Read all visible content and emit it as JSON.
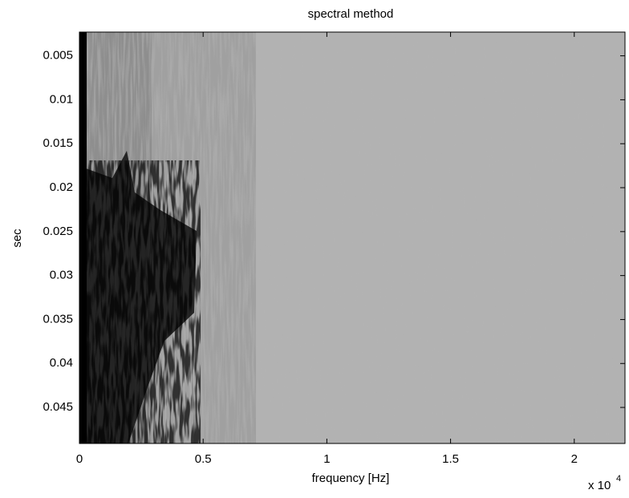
{
  "chart_data": {
    "type": "spectrogram",
    "title": "spectral method",
    "x_label": "frequency [Hz]",
    "y_label": "sec",
    "x_scale_label": {
      "base": "x 10",
      "exponent": "4"
    },
    "xlim": [
      0,
      2.205
    ],
    "xticks": [
      0,
      0.5,
      1,
      1.5,
      2
    ],
    "ylim": [
      0.0023,
      0.0491
    ],
    "yticks": [
      0.005,
      0.01,
      0.015,
      0.02,
      0.025,
      0.03,
      0.035,
      0.04,
      0.045
    ],
    "y_reversed": true
  }
}
